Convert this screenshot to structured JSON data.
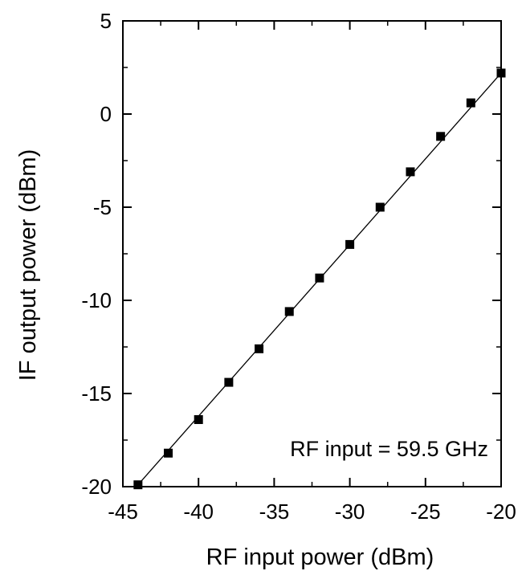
{
  "chart_data": {
    "type": "scatter",
    "title": "",
    "xlabel": "RF input power (dBm)",
    "ylabel": "IF output power (dBm)",
    "xlim": [
      -45,
      -20
    ],
    "ylim": [
      -20,
      5
    ],
    "xticks": [
      -45,
      -40,
      -35,
      -30,
      -25,
      -20
    ],
    "yticks": [
      -20,
      -15,
      -10,
      -5,
      0,
      5
    ],
    "grid": false,
    "legend": "none",
    "annotation": "RF input = 59.5 GHz",
    "series": [
      {
        "marker": "square",
        "x": [
          -44,
          -42,
          -40,
          -38,
          -36,
          -34,
          -32,
          -30,
          -28,
          -26,
          -24,
          -22,
          -20
        ],
        "y": [
          -19.9,
          -18.2,
          -16.4,
          -14.4,
          -12.6,
          -10.6,
          -8.8,
          -7.0,
          -5.0,
          -3.1,
          -1.2,
          0.6,
          2.2
        ]
      }
    ],
    "fit_line": {
      "x": [
        -44,
        -20
      ],
      "y": [
        -19.9,
        2.2
      ]
    },
    "colors": {
      "marker": "#000000",
      "fit_line": "#000000",
      "axis": "#000000"
    }
  }
}
